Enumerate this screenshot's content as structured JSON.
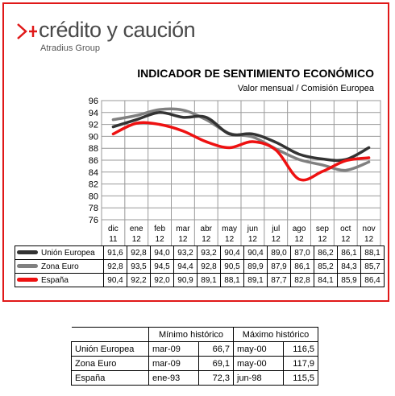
{
  "logo": {
    "name": "crédito y caución",
    "sub": "Atradius Group",
    "colors": {
      "arrow": "#e01818",
      "text": "#4a4a4a"
    }
  },
  "chart_data": {
    "type": "line",
    "title": "INDICADOR DE SENTIMIENTO ECONÓMICO",
    "subtitle": "Valor mensual / Comisión Europea",
    "categories": [
      [
        "dic",
        "11"
      ],
      [
        "ene",
        "12"
      ],
      [
        "feb",
        "12"
      ],
      [
        "mar",
        "12"
      ],
      [
        "abr",
        "12"
      ],
      [
        "may",
        "12"
      ],
      [
        "jun",
        "12"
      ],
      [
        "jul",
        "12"
      ],
      [
        "ago",
        "12"
      ],
      [
        "sep",
        "12"
      ],
      [
        "oct",
        "12"
      ],
      [
        "nov",
        "12"
      ]
    ],
    "ylim": [
      76,
      96
    ],
    "yticks": [
      76,
      78,
      80,
      82,
      84,
      86,
      88,
      90,
      92,
      94,
      96
    ],
    "grid": true,
    "series": [
      {
        "name": "Unión Europea",
        "color": "#333333",
        "values": [
          91.6,
          92.8,
          94.0,
          93.2,
          93.2,
          90.4,
          90.4,
          89.0,
          87.0,
          86.2,
          86.1,
          88.1
        ],
        "labels": [
          "91,6",
          "92,8",
          "94,0",
          "93,2",
          "93,2",
          "90,4",
          "90,4",
          "89,0",
          "87,0",
          "86,2",
          "86,1",
          "88,1"
        ]
      },
      {
        "name": "Zona Euro",
        "color": "#808080",
        "values": [
          92.8,
          93.5,
          94.5,
          94.4,
          92.8,
          90.5,
          89.9,
          87.9,
          86.1,
          85.2,
          84.3,
          85.7
        ],
        "labels": [
          "92,8",
          "93,5",
          "94,5",
          "94,4",
          "92,8",
          "90,5",
          "89,9",
          "87,9",
          "86,1",
          "85,2",
          "84,3",
          "85,7"
        ]
      },
      {
        "name": "España",
        "color": "#ee1111",
        "values": [
          90.4,
          92.2,
          92.0,
          90.9,
          89.1,
          88.1,
          89.1,
          87.7,
          82.8,
          84.1,
          85.9,
          86.4
        ],
        "labels": [
          "90,4",
          "92,2",
          "92,0",
          "90,9",
          "89,1",
          "88,1",
          "89,1",
          "87,7",
          "82,8",
          "84,1",
          "85,9",
          "86,4"
        ]
      }
    ]
  },
  "historic": {
    "headers": [
      "Mínimo histórico",
      "Máximo histórico"
    ],
    "rows": [
      {
        "name": "Unión Europea",
        "min_date": "mar-09",
        "min_val": "66,7",
        "max_date": "may-00",
        "max_val": "116,5"
      },
      {
        "name": "Zona Euro",
        "min_date": "mar-09",
        "min_val": "69,1",
        "max_date": "may-00",
        "max_val": "117,9"
      },
      {
        "name": "España",
        "min_date": "ene-93",
        "min_val": "72,3",
        "max_date": "jun-98",
        "max_val": "115,5"
      }
    ]
  }
}
